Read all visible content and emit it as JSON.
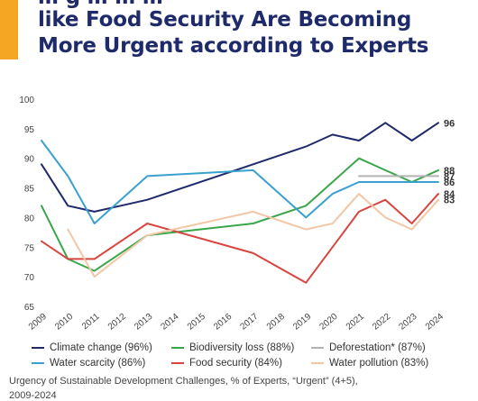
{
  "title": {
    "lines": [
      "… g … … …",
      "like Food Security Are Becoming",
      "More Urgent according to Experts"
    ]
  },
  "accent_color": "#f5a623",
  "title_color": "#1f2a6b",
  "caption": {
    "line1": "Urgency of Sustainable Development Challenges, % of Experts, “Urgent” (4+5),",
    "line2": "2009-2024"
  },
  "chart_data": {
    "type": "line",
    "x": [
      "2009",
      "2010",
      "2011",
      "2012",
      "2013",
      "2014",
      "2015",
      "2016",
      "2017",
      "2018",
      "2019",
      "2020",
      "2021",
      "2022",
      "2023",
      "2024"
    ],
    "ylim": [
      65,
      100
    ],
    "yticks": [
      65,
      70,
      75,
      80,
      85,
      90,
      95,
      100
    ],
    "grid": false,
    "legend_position": "bottom",
    "series": [
      {
        "name": "Climate change (96%)",
        "color": "#1f2a6b",
        "end_label": "96",
        "points": [
          [
            "2009",
            89
          ],
          [
            "2010",
            82
          ],
          [
            "2011",
            81
          ],
          [
            "2013",
            83
          ],
          [
            "2017",
            89
          ],
          [
            "2019",
            92
          ],
          [
            "2020",
            94
          ],
          [
            "2021",
            93
          ],
          [
            "2022",
            96
          ],
          [
            "2023",
            93
          ],
          [
            "2024",
            96
          ]
        ]
      },
      {
        "name": "Biodiversity loss (88%)",
        "color": "#3aa64a",
        "end_label": "88",
        "points": [
          [
            "2009",
            82
          ],
          [
            "2010",
            73
          ],
          [
            "2011",
            71
          ],
          [
            "2013",
            77
          ],
          [
            "2017",
            79
          ],
          [
            "2019",
            82
          ],
          [
            "2020",
            86
          ],
          [
            "2021",
            90
          ],
          [
            "2022",
            88
          ],
          [
            "2023",
            86
          ],
          [
            "2024",
            88
          ]
        ]
      },
      {
        "name": "Deforestation* (87%)",
        "color": "#b3b3b3",
        "end_label": "87",
        "points": [
          [
            "2021",
            87
          ],
          [
            "2022",
            87
          ],
          [
            "2023",
            87
          ],
          [
            "2024",
            87
          ]
        ]
      },
      {
        "name": "Water scarcity (86%)",
        "color": "#3aa0cf",
        "end_label": "86",
        "points": [
          [
            "2009",
            93
          ],
          [
            "2010",
            87
          ],
          [
            "2011",
            79
          ],
          [
            "2013",
            87
          ],
          [
            "2017",
            88
          ],
          [
            "2019",
            80
          ],
          [
            "2020",
            84
          ],
          [
            "2021",
            86
          ],
          [
            "2022",
            86
          ],
          [
            "2023",
            86
          ],
          [
            "2024",
            86
          ]
        ]
      },
      {
        "name": "Food security (84%)",
        "color": "#d9453e",
        "end_label": "84",
        "points": [
          [
            "2009",
            76
          ],
          [
            "2010",
            73
          ],
          [
            "2011",
            73
          ],
          [
            "2013",
            79
          ],
          [
            "2017",
            74
          ],
          [
            "2019",
            69
          ],
          [
            "2021",
            81
          ],
          [
            "2022",
            83
          ],
          [
            "2023",
            79
          ],
          [
            "2024",
            84
          ]
        ]
      },
      {
        "name": "Water pollution (83%)",
        "color": "#f3c6a6",
        "end_label": "83",
        "points": [
          [
            "2010",
            78
          ],
          [
            "2011",
            70
          ],
          [
            "2013",
            77
          ],
          [
            "2017",
            81
          ],
          [
            "2019",
            78
          ],
          [
            "2020",
            79
          ],
          [
            "2021",
            84
          ],
          [
            "2022",
            80
          ],
          [
            "2023",
            78
          ],
          [
            "2024",
            83
          ]
        ]
      }
    ]
  }
}
